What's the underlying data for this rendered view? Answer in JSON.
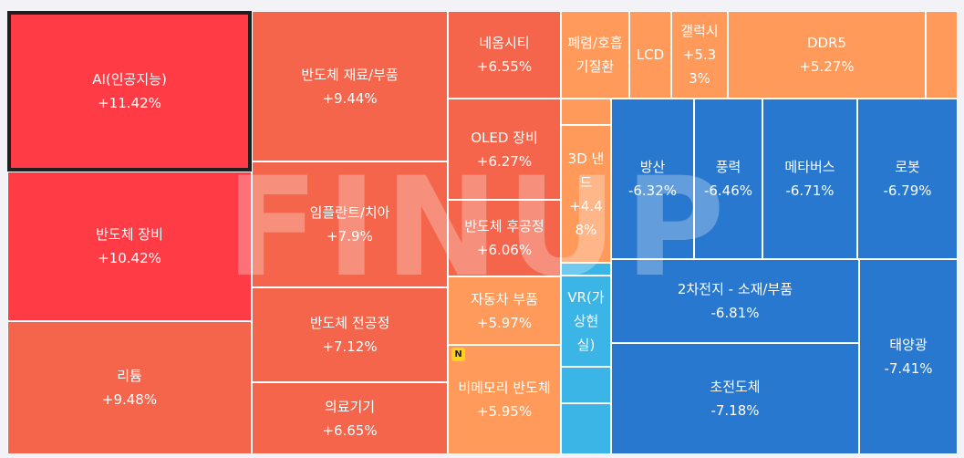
{
  "chart_data": {
    "type": "treemap",
    "title": "",
    "watermark": "FINUP",
    "colors": {
      "strong_up": "#ff3b45",
      "up": "#f4654b",
      "mild_up": "#ff9a5a",
      "down": "#2878cf",
      "mild_down": "#3bb4e6"
    },
    "items": [
      {
        "name": "AI(인공지능)",
        "change": "+11.42%",
        "value": 11.42,
        "color": "#ff3b45",
        "selected": true
      },
      {
        "name": "반도체 장비",
        "change": "+10.42%",
        "value": 10.42,
        "color": "#ff3b45"
      },
      {
        "name": "리튬",
        "change": "+9.48%",
        "value": 9.48,
        "color": "#f4654b"
      },
      {
        "name": "반도체 재료/부품",
        "change": "+9.44%",
        "value": 9.44,
        "color": "#f4654b"
      },
      {
        "name": "임플란트/치아",
        "change": "+7.9%",
        "value": 7.9,
        "color": "#f4654b"
      },
      {
        "name": "반도체 전공정",
        "change": "+7.12%",
        "value": 7.12,
        "color": "#f4654b"
      },
      {
        "name": "의료기기",
        "change": "+6.65%",
        "value": 6.65,
        "color": "#f4654b"
      },
      {
        "name": "네옴시티",
        "change": "+6.55%",
        "value": 6.55,
        "color": "#f4654b"
      },
      {
        "name": "OLED 장비",
        "change": "+6.27%",
        "value": 6.27,
        "color": "#f4654b"
      },
      {
        "name": "반도체 후공정",
        "change": "+6.06%",
        "value": 6.06,
        "color": "#f4654b"
      },
      {
        "name": "자동차 부품",
        "change": "+5.97%",
        "value": 5.97,
        "color": "#ff9a5a"
      },
      {
        "name": "비메모리 반도체",
        "change": "+5.95%",
        "value": 5.95,
        "color": "#ff9a5a",
        "badge": "N"
      },
      {
        "name": "폐렴/호흡기질환",
        "change": "",
        "value": null,
        "color": "#ff9a5a"
      },
      {
        "name": "LCD",
        "change": "",
        "value": null,
        "color": "#ff9a5a"
      },
      {
        "name": "갤럭시",
        "change": "+5.33%",
        "value": 5.33,
        "color": "#ff9a5a"
      },
      {
        "name": "DDR5",
        "change": "+5.27%",
        "value": 5.27,
        "color": "#ff9a5a"
      },
      {
        "name": "",
        "change": "",
        "value": null,
        "color": "#ff9a5a"
      },
      {
        "name": "",
        "change": "",
        "value": null,
        "color": "#ff9a5a"
      },
      {
        "name": "3D 낸드",
        "change": "+4.48%",
        "value": 4.48,
        "color": "#ff9a5a"
      },
      {
        "name": "",
        "change": "",
        "value": null,
        "color": "#3bb4e6"
      },
      {
        "name": "VR(가상현실)",
        "change": "",
        "value": null,
        "color": "#3bb4e6"
      },
      {
        "name": "",
        "change": "",
        "value": null,
        "color": "#3bb4e6"
      },
      {
        "name": "",
        "change": "",
        "value": null,
        "color": "#3bb4e6"
      },
      {
        "name": "방산",
        "change": "-6.32%",
        "value": -6.32,
        "color": "#2878cf"
      },
      {
        "name": "풍력",
        "change": "-6.46%",
        "value": -6.46,
        "color": "#2878cf"
      },
      {
        "name": "메타버스",
        "change": "-6.71%",
        "value": -6.71,
        "color": "#2878cf"
      },
      {
        "name": "로봇",
        "change": "-6.79%",
        "value": -6.79,
        "color": "#2878cf"
      },
      {
        "name": "2차전지 - 소재/부품",
        "change": "-6.81%",
        "value": -6.81,
        "color": "#2878cf"
      },
      {
        "name": "태양광",
        "change": "-7.41%",
        "value": -7.41,
        "color": "#2878cf"
      },
      {
        "name": "초전도체",
        "change": "-7.18%",
        "value": -7.18,
        "color": "#2878cf"
      }
    ]
  }
}
